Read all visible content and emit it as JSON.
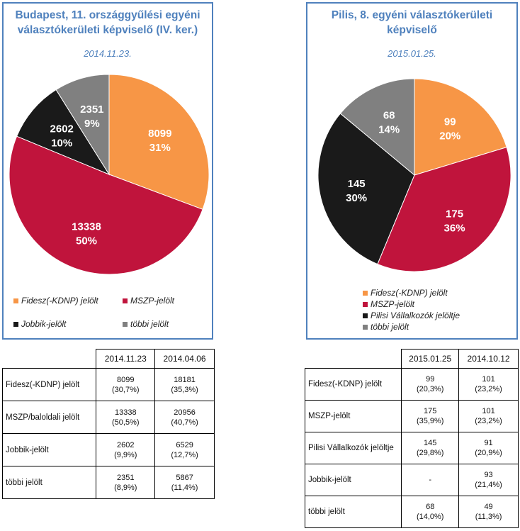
{
  "left": {
    "title_line1": "Budapest, 11. országgyűlési egyéni",
    "title_line2": "választókerületi képviselő (IV. ker.)",
    "date": "2014.11.23.",
    "legend": [
      {
        "label": "Fidesz(-KDNP) jelölt",
        "color": "#f79646"
      },
      {
        "label": "MSZP-jelölt",
        "color": "#c0143c"
      },
      {
        "label": "Jobbik-jelölt",
        "color": "#1a1a1a"
      },
      {
        "label": "többi jelölt",
        "color": "#808080"
      }
    ],
    "table": {
      "headers": [
        "2014.11.23",
        "2014.04.06"
      ],
      "rows": [
        {
          "label": "Fidesz(-KDNP) jelölt",
          "c1a": "8099",
          "c1b": "(30,7%)",
          "c2a": "18181",
          "c2b": "(35,3%)"
        },
        {
          "label": "MSZP/baloldali jelölt",
          "c1a": "13338",
          "c1b": "(50,5%)",
          "c2a": "20956",
          "c2b": "(40,7%)"
        },
        {
          "label": "Jobbik-jelölt",
          "c1a": "2602",
          "c1b": "(9,9%)",
          "c2a": "6529",
          "c2b": "(12,7%)"
        },
        {
          "label": "többi jelölt",
          "c1a": "2351",
          "c1b": "(8,9%)",
          "c2a": "5867",
          "c2b": "(11,4%)"
        }
      ]
    }
  },
  "right": {
    "title_line1": "Pilis, 8. egyéni választókerületi",
    "title_line2": "képviselő",
    "date": "2015.01.25.",
    "legend": [
      {
        "label": "Fidesz(-KDNP) jelölt",
        "color": "#f79646"
      },
      {
        "label": "MSZP-jelölt",
        "color": "#c0143c"
      },
      {
        "label": "Pilisi Vállalkozók jelöltje",
        "color": "#1a1a1a"
      },
      {
        "label": "többi jelölt",
        "color": "#808080"
      }
    ],
    "table": {
      "headers": [
        "2015.01.25",
        "2014.10.12"
      ],
      "rows": [
        {
          "label": "Fidesz(-KDNP) jelölt",
          "c1a": "99",
          "c1b": "(20,3%)",
          "c2a": "101",
          "c2b": "(23,2%)"
        },
        {
          "label": "MSZP-jelölt",
          "c1a": "175",
          "c1b": "(35,9%)",
          "c2a": "101",
          "c2b": "(23,2%)"
        },
        {
          "label": "Pilisi Vállalkozók jelöltje",
          "c1a": "145",
          "c1b": "(29,8%)",
          "c2a": "91",
          "c2b": "(20,9%)"
        },
        {
          "label": "Jobbik-jelölt",
          "c1a": "-",
          "c1b": "",
          "c2a": "93",
          "c2b": "(21,4%)"
        },
        {
          "label": "többi jelölt",
          "c1a": "68",
          "c1b": "(14,0%)",
          "c2a": "49",
          "c2b": "(11,3%)"
        }
      ]
    }
  },
  "chart_data": [
    {
      "type": "pie",
      "title": "Budapest, 11. országgyűlési egyéni választókerületi képviselő (IV. ker.)",
      "subtitle": "2014.11.23.",
      "categories": [
        "Fidesz(-KDNP) jelölt",
        "MSZP-jelölt",
        "Jobbik-jelölt",
        "többi jelölt"
      ],
      "values": [
        8099,
        13338,
        2602,
        2351
      ],
      "percent_labels": [
        "31%",
        "50%",
        "10%",
        "9%"
      ],
      "colors": [
        "#f79646",
        "#c0143c",
        "#1a1a1a",
        "#808080"
      ],
      "legend_position": "bottom"
    },
    {
      "type": "pie",
      "title": "Pilis, 8. egyéni választókerületi képviselő",
      "subtitle": "2015.01.25.",
      "categories": [
        "Fidesz(-KDNP) jelölt",
        "MSZP-jelölt",
        "Pilisi Vállalkozók jelöltje",
        "többi jelölt"
      ],
      "values": [
        99,
        175,
        145,
        68
      ],
      "percent_labels": [
        "20%",
        "36%",
        "30%",
        "14%"
      ],
      "colors": [
        "#f79646",
        "#c0143c",
        "#1a1a1a",
        "#808080"
      ],
      "legend_position": "bottom"
    }
  ]
}
